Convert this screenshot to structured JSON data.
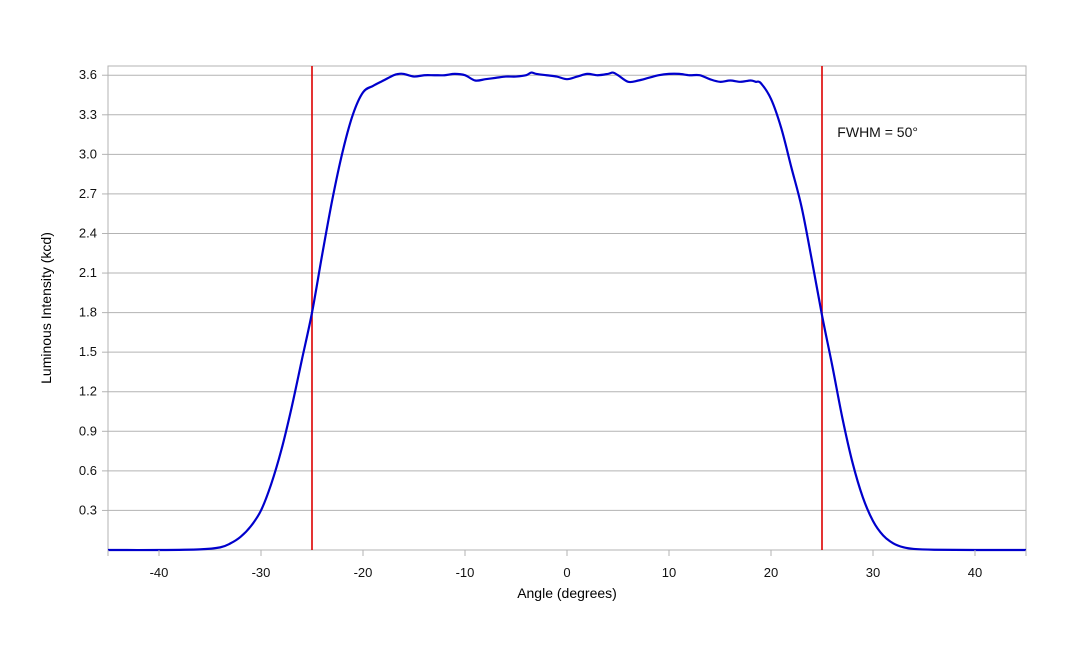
{
  "chart_data": {
    "type": "line",
    "title": "",
    "xlabel": "Angle (degrees)",
    "ylabel": "Luminous Intensity (kcd)",
    "xlim": [
      -45,
      45
    ],
    "ylim": [
      0,
      3.6
    ],
    "x_ticks": [
      -40,
      -30,
      -20,
      -10,
      0,
      10,
      20,
      30,
      40
    ],
    "x_tick_labels": [
      "-40",
      "-30",
      "-20",
      "-10",
      "0",
      "10",
      "20",
      "30",
      "40"
    ],
    "y_ticks": [
      0.3,
      0.6,
      0.9,
      1.2,
      1.5,
      1.8,
      2.1,
      2.4,
      2.7,
      3.0,
      3.3,
      3.6
    ],
    "y_tick_labels": [
      "0.3",
      "0.6",
      "0.9",
      "1.2",
      "1.5",
      "1.8",
      "2.1",
      "2.4",
      "2.7",
      "3.0",
      "3.3",
      "3.6"
    ],
    "grid": {
      "horizontal": true,
      "vertical": false
    },
    "series": [
      {
        "color": "#0000cc",
        "x": [
          -45,
          -40,
          -36,
          -34,
          -33,
          -32,
          -31,
          -30,
          -29,
          -28,
          -27,
          -26,
          -25,
          -24,
          -23,
          -22,
          -21,
          -20,
          -19,
          -18,
          -17,
          -16.5,
          -16,
          -15,
          -14,
          -13,
          -12,
          -11,
          -10,
          -9,
          -8,
          -7,
          -6,
          -5,
          -4,
          -3.5,
          -3,
          -2,
          -1,
          0,
          1,
          2,
          3,
          4,
          4.5,
          5,
          6,
          7,
          8,
          9,
          10,
          11,
          12,
          13,
          14,
          15,
          16,
          17,
          18,
          18.5,
          19,
          20,
          21,
          22,
          23,
          24,
          25,
          26,
          27,
          28,
          29,
          30,
          31,
          32,
          33,
          34,
          36,
          40,
          45
        ],
        "y": [
          0,
          0,
          0.005,
          0.02,
          0.05,
          0.1,
          0.18,
          0.3,
          0.5,
          0.76,
          1.08,
          1.44,
          1.8,
          2.24,
          2.66,
          3.02,
          3.3,
          3.47,
          3.52,
          3.56,
          3.6,
          3.61,
          3.61,
          3.59,
          3.6,
          3.6,
          3.6,
          3.61,
          3.6,
          3.56,
          3.57,
          3.58,
          3.59,
          3.59,
          3.6,
          3.62,
          3.61,
          3.6,
          3.59,
          3.57,
          3.59,
          3.61,
          3.6,
          3.61,
          3.62,
          3.6,
          3.55,
          3.56,
          3.58,
          3.6,
          3.61,
          3.61,
          3.6,
          3.6,
          3.57,
          3.55,
          3.56,
          3.55,
          3.56,
          3.55,
          3.54,
          3.42,
          3.2,
          2.9,
          2.6,
          2.2,
          1.78,
          1.4,
          1.0,
          0.66,
          0.4,
          0.22,
          0.11,
          0.05,
          0.02,
          0.008,
          0.002,
          0,
          0
        ]
      }
    ],
    "vertical_lines": [
      {
        "x": -25,
        "color": "#dd0000"
      },
      {
        "x": 25,
        "color": "#dd0000"
      }
    ],
    "annotations": [
      {
        "text": "FWHM = 50°",
        "x": 26.5,
        "y": 3.13
      }
    ],
    "colors": {
      "gridline": "#b3b3b3",
      "axis": "#b3b3b3",
      "background": "#ffffff"
    }
  }
}
